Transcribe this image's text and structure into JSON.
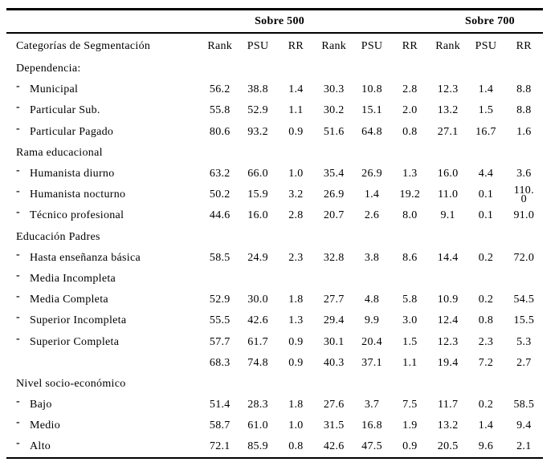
{
  "colors": {
    "background": "#ffffff",
    "text": "#000000",
    "rule": "#000000"
  },
  "table": {
    "group_headers": {
      "sobre500": "Sobre 500",
      "sobre700": "Sobre 700"
    },
    "label_header": "Categorías de Segmentación",
    "column_headers": [
      "Rank",
      "PSU",
      "RR",
      "Rank",
      "PSU",
      "RR",
      "Rank",
      "PSU",
      "RR"
    ],
    "bullet_char": "-",
    "rows": [
      {
        "label": "Dependencia:",
        "bullet": false,
        "values": []
      },
      {
        "label": "Municipal",
        "bullet": true,
        "values": [
          "56.2",
          "38.8",
          "1.4",
          "30.3",
          "10.8",
          "2.8",
          "12.3",
          "1.4",
          "8.8"
        ]
      },
      {
        "label": "Particular Sub.",
        "bullet": true,
        "values": [
          "55.8",
          "52.9",
          "1.1",
          "30.2",
          "15.1",
          "2.0",
          "13.2",
          "1.5",
          "8.8"
        ]
      },
      {
        "label": "Particular Pagado",
        "bullet": true,
        "values": [
          "80.6",
          "93.2",
          "0.9",
          "51.6",
          "64.8",
          "0.8",
          "27.1",
          "16.7",
          "1.6"
        ]
      },
      {
        "label": "Rama educacional",
        "bullet": false,
        "values": []
      },
      {
        "label": "Humanista diurno",
        "bullet": true,
        "values": [
          "63.2",
          "66.0",
          "1.0",
          "35.4",
          "26.9",
          "1.3",
          "16.0",
          "4.4",
          "3.6"
        ]
      },
      {
        "label": "Humanista nocturno",
        "bullet": true,
        "values": [
          "50.2",
          "15.9",
          "3.2",
          "26.9",
          "1.4",
          "19.2",
          "11.0",
          "0.1",
          "110.0"
        ],
        "wrap_last": true
      },
      {
        "label": "Técnico profesional",
        "bullet": true,
        "values": [
          "44.6",
          "16.0",
          "2.8",
          "20.7",
          "2.6",
          "8.0",
          "9.1",
          "0.1",
          "91.0"
        ]
      },
      {
        "label": "Educación Padres",
        "bullet": false,
        "values": []
      },
      {
        "label": "Hasta enseñanza básica",
        "bullet": true,
        "values": [
          "58.5",
          "24.9",
          "2.3",
          "32.8",
          "3.8",
          "8.6",
          "14.4",
          "0.2",
          "72.0"
        ]
      },
      {
        "label": "Media Incompleta",
        "bullet": true,
        "values": []
      },
      {
        "label": "Media Completa",
        "bullet": true,
        "values": [
          "52.9",
          "30.0",
          "1.8",
          "27.7",
          "4.8",
          "5.8",
          "10.9",
          "0.2",
          "54.5"
        ]
      },
      {
        "label": "Superior Incompleta",
        "bullet": true,
        "values": [
          "55.5",
          "42.6",
          "1.3",
          "29.4",
          "9.9",
          "3.0",
          "12.4",
          "0.8",
          "15.5"
        ]
      },
      {
        "label": "Superior Completa",
        "bullet": true,
        "values": [
          "57.7",
          "61.7",
          "0.9",
          "30.1",
          "20.4",
          "1.5",
          "12.3",
          "2.3",
          "5.3"
        ]
      },
      {
        "label": "",
        "bullet": false,
        "values": [
          "68.3",
          "74.8",
          "0.9",
          "40.3",
          "37.1",
          "1.1",
          "19.4",
          "7.2",
          "2.7"
        ]
      },
      {
        "label": "Nivel socio-económico",
        "bullet": false,
        "values": []
      },
      {
        "label": "Bajo",
        "bullet": true,
        "values": [
          "51.4",
          "28.3",
          "1.8",
          "27.6",
          "3.7",
          "7.5",
          "11.7",
          "0.2",
          "58.5"
        ]
      },
      {
        "label": "Medio",
        "bullet": true,
        "values": [
          "58.7",
          "61.0",
          "1.0",
          "31.5",
          "16.8",
          "1.9",
          "13.2",
          "1.4",
          "9.4"
        ]
      },
      {
        "label": "Alto",
        "bullet": true,
        "values": [
          "72.1",
          "85.9",
          "0.8",
          "42.6",
          "47.5",
          "0.9",
          "20.5",
          "9.6",
          "2.1"
        ]
      }
    ]
  }
}
